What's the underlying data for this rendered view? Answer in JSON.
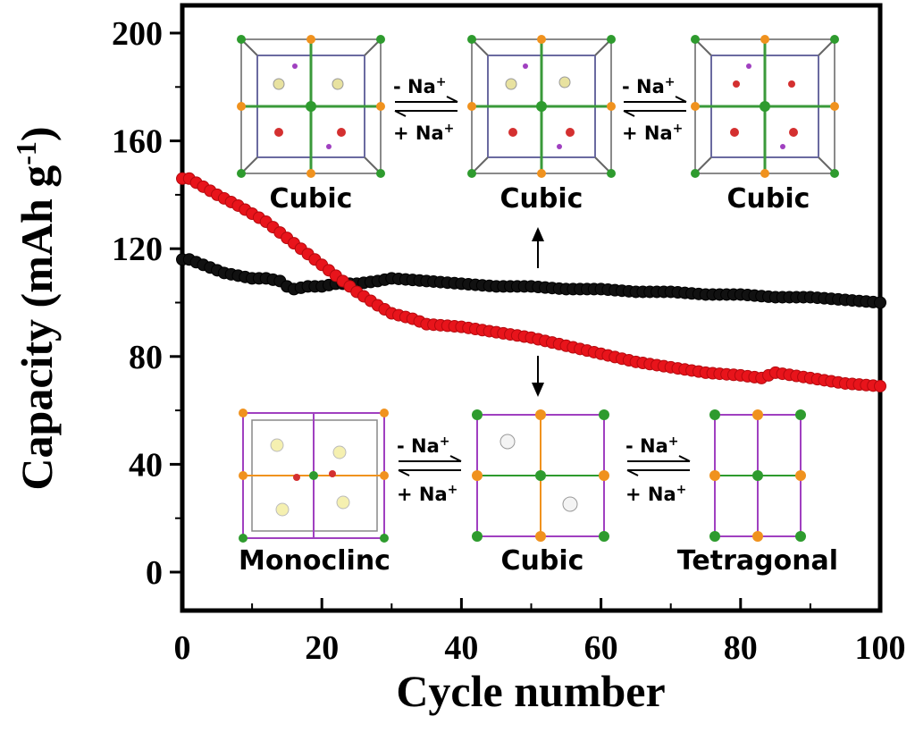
{
  "chart_data": {
    "type": "scatter",
    "xlabel": "Cycle number",
    "ylabel": "Capacity (mAh g",
    "ylabel_unit_exponent": "-1",
    "ylabel_close": ")",
    "xlim": [
      0,
      100
    ],
    "ylim": [
      0,
      200
    ],
    "x_ticks": [
      0,
      20,
      40,
      60,
      80,
      100
    ],
    "y_ticks": [
      0,
      40,
      80,
      120,
      160,
      200
    ],
    "x_tick_labels": [
      "0",
      "20",
      "40",
      "60",
      "80",
      "100"
    ],
    "y_tick_labels": [
      "0",
      "40",
      "80",
      "120",
      "160",
      "200"
    ],
    "series": [
      {
        "name": "black",
        "color": "#111111",
        "x": [
          1,
          2,
          4,
          6,
          8,
          10,
          12,
          14,
          15,
          16,
          18,
          20,
          22,
          25,
          28,
          30,
          35,
          40,
          45,
          50,
          55,
          60,
          65,
          70,
          75,
          80,
          85,
          90,
          95,
          100
        ],
        "y": [
          116,
          115,
          113,
          111,
          110,
          109,
          109,
          108,
          106,
          105,
          106,
          106,
          107,
          107,
          108,
          109,
          108,
          107,
          106,
          106,
          105,
          105,
          104,
          104,
          103,
          103,
          102,
          102,
          101,
          100
        ]
      },
      {
        "name": "red",
        "color": "#e8141b",
        "x": [
          1,
          3,
          5,
          8,
          10,
          12,
          15,
          18,
          20,
          22,
          25,
          28,
          30,
          33,
          35,
          40,
          45,
          50,
          55,
          60,
          65,
          70,
          75,
          80,
          83,
          85,
          90,
          95,
          100
        ],
        "y": [
          146,
          143,
          140,
          136,
          133,
          130,
          124,
          118,
          114,
          110,
          104,
          99,
          96,
          94,
          92,
          91,
          89,
          87,
          84,
          81,
          78,
          76,
          74,
          73,
          72,
          74,
          72,
          70,
          69
        ]
      }
    ],
    "annotations": {
      "top_structures": [
        "Cubic",
        "Cubic",
        "Cubic"
      ],
      "bottom_structures": [
        "Monoclinc",
        "Cubic",
        "Tetragonal"
      ],
      "reaction_minus": "- Na",
      "reaction_plus": "+ Na",
      "ion_charge": "+"
    }
  }
}
